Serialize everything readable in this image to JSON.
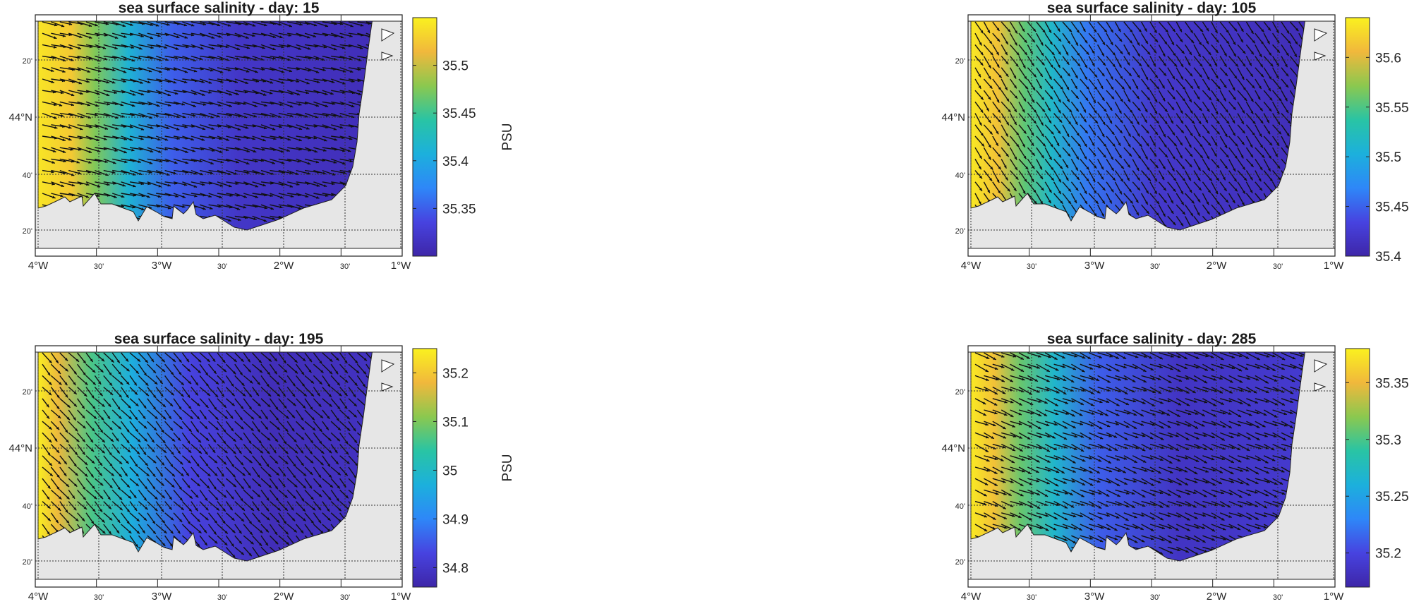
{
  "colorbar_label": "PSU",
  "lon_labels": [
    "4°W",
    "30'",
    "3°W",
    "30'",
    "2°W",
    "30'",
    "1°W"
  ],
  "lat_labels": [
    "20'",
    "44°N",
    "40'",
    "20'"
  ],
  "colormap": [
    "#3e26a8",
    "#4743e0",
    "#2e87f8",
    "#1cb0dc",
    "#29c4a4",
    "#8bc84f",
    "#f1b83c",
    "#faf11f"
  ],
  "land_color": "#e6e6e6",
  "chart_data": [
    {
      "type": "heatmap",
      "title": "sea surface salinity - day: 15",
      "xlabel": "",
      "ylabel": "",
      "colorbar": {
        "label": "PSU",
        "range": [
          35.3,
          35.55
        ],
        "ticks": [
          35.35,
          35.4,
          35.45,
          35.5
        ]
      },
      "x_range": [
        "4°W",
        "1°W"
      ],
      "y_range": [
        "43°45'N",
        "44°25'N"
      ],
      "overlay": "surface current vectors (quiver)",
      "grid": true
    },
    {
      "type": "heatmap",
      "title": "sea surface salinity - day: 105",
      "xlabel": "",
      "ylabel": "",
      "colorbar": {
        "label": "PSU",
        "range": [
          35.4,
          35.64
        ],
        "ticks": [
          35.4,
          35.45,
          35.5,
          35.55,
          35.6
        ]
      },
      "x_range": [
        "4°W",
        "1°W"
      ],
      "y_range": [
        "43°45'N",
        "44°25'N"
      ],
      "overlay": "surface current vectors (quiver)",
      "grid": true
    },
    {
      "type": "heatmap",
      "title": "sea surface salinity - day: 195",
      "xlabel": "",
      "ylabel": "",
      "colorbar": {
        "label": "PSU",
        "range": [
          34.76,
          35.25
        ],
        "ticks": [
          34.8,
          34.9,
          35,
          35.1,
          35.2
        ]
      },
      "x_range": [
        "4°W",
        "1°W"
      ],
      "y_range": [
        "43°45'N",
        "44°25'N"
      ],
      "overlay": "surface current vectors (quiver)",
      "grid": true
    },
    {
      "type": "heatmap",
      "title": "sea surface salinity - day: 285",
      "xlabel": "",
      "ylabel": "",
      "colorbar": {
        "label": "PSU",
        "range": [
          35.17,
          35.38
        ],
        "ticks": [
          35.2,
          35.25,
          35.3,
          35.35
        ]
      },
      "x_range": [
        "4°W",
        "1°W"
      ],
      "y_range": [
        "43°45'N",
        "44°25'N"
      ],
      "overlay": "surface current vectors (quiver)",
      "grid": true
    }
  ]
}
